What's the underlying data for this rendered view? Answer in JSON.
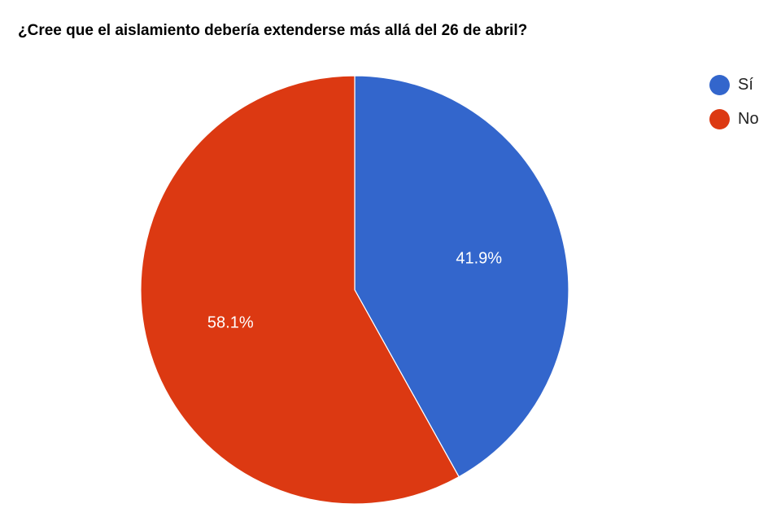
{
  "chart_data": {
    "type": "pie",
    "title": "¿Cree que el aislamiento debería extenderse más allá del 26 de abril?",
    "categories": [
      "Sí",
      "No"
    ],
    "values": [
      41.9,
      58.1
    ],
    "value_labels": [
      "41.9%",
      "58.1%"
    ],
    "colors": [
      "#3366CC",
      "#DC3912"
    ],
    "legend_position": "right",
    "start_angle_deg": 0,
    "direction": "clockwise"
  },
  "title": "¿Cree que el aislamiento debería extenderse más allá del 26 de abril?",
  "legend": {
    "items": [
      {
        "label": "Sí",
        "color": "#3366CC"
      },
      {
        "label": "No",
        "color": "#DC3912"
      }
    ]
  },
  "labels": {
    "si": "41.9%",
    "no": "58.1%"
  }
}
